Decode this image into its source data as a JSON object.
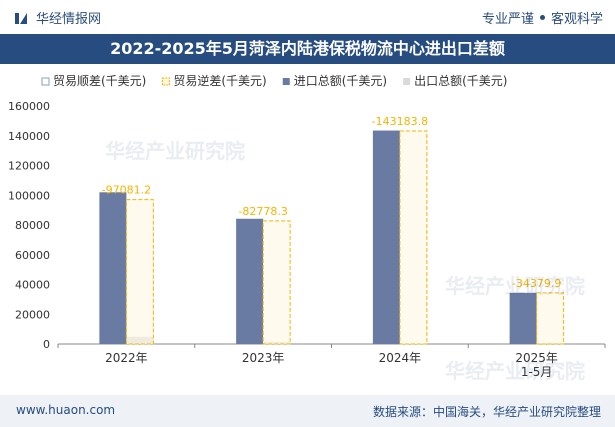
{
  "header": {
    "brand": "华经情报网",
    "slogan_left": "专业严谨",
    "slogan_right": "客观科学",
    "brand_color": "#264c80"
  },
  "title": "2022-2025年5月菏泽内陆港保税物流中心进出口差额",
  "footer": {
    "site": "www.huaon.com",
    "source": "数据来源：中国海关，华经产业研究院整理"
  },
  "watermark": "华经产业研究院",
  "chart_data": {
    "type": "bar",
    "categories": [
      "2022年",
      "2023年",
      "2024年",
      "2025年\n1-5月"
    ],
    "series": [
      {
        "name": "贸易顺差(千美元)",
        "values": [
          null,
          null,
          null,
          null
        ],
        "color": "#ffffff",
        "border": "#8aa0c2"
      },
      {
        "name": "贸易逆差(千美元)",
        "values": [
          -97081.2,
          -82778.3,
          -143183.8,
          -34379.9
        ],
        "color": "#fdf6e3",
        "border": "#f5b400"
      },
      {
        "name": "进口总额(千美元)",
        "values": [
          102000,
          84200,
          143500,
          34400
        ],
        "color": "#6a7ba3"
      },
      {
        "name": "出口总额(千美元)",
        "values": [
          4900,
          1400,
          300,
          20
        ],
        "color": "#d9d9d9"
      }
    ],
    "deficit_labels": [
      "-97081.2",
      "-82778.3",
      "-143183.8",
      "-34379.9"
    ],
    "ylim": [
      0,
      160000
    ],
    "yticks": [
      0,
      20000,
      40000,
      60000,
      80000,
      100000,
      120000,
      140000,
      160000
    ],
    "grid": false,
    "legend": "top-left",
    "label_color": "#f5b400"
  }
}
